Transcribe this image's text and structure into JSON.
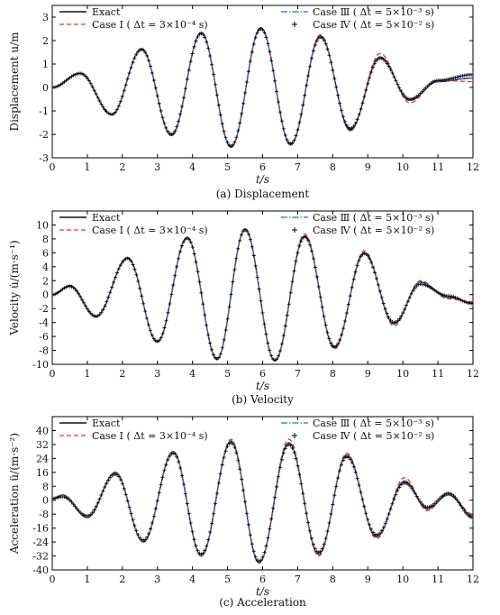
{
  "legend": {
    "exact": "Exact",
    "case1": "Case Ⅰ ( Δt = 3×10⁻⁴ s)",
    "case3": "Case Ⅲ ( Δt = 5×10⁻³ s)",
    "case4": "Case Ⅳ ( Δt = 5×10⁻² s)"
  },
  "colors": {
    "exact": "#111111",
    "case1": "#d9383a",
    "case3": "#2f6fb8",
    "case4": "#000000"
  },
  "chart_data": [
    {
      "type": "line",
      "caption": "(a) Displacement",
      "xlabel": "t/s",
      "ylabel": "Displacement u/m",
      "xlim": [
        0,
        12
      ],
      "ylim": [
        -3,
        3.5
      ],
      "xticks": [
        0,
        1,
        2,
        3,
        4,
        5,
        6,
        7,
        8,
        9,
        10,
        11,
        12
      ],
      "yticks": [
        -3,
        -2,
        -1,
        0,
        1,
        2,
        3
      ],
      "legend_position": "top",
      "x": [
        0,
        0.8,
        1.7,
        2.55,
        3.4,
        4.25,
        5.1,
        5.95,
        6.8,
        7.65,
        8.5,
        9.35,
        10.2,
        11.0,
        12.0
      ],
      "series": [
        {
          "name": "Exact",
          "values": [
            0,
            0.6,
            -1.15,
            1.65,
            -2.05,
            2.35,
            -2.55,
            2.55,
            -2.45,
            2.2,
            -1.8,
            1.3,
            -0.55,
            0.25,
            0.4
          ]
        },
        {
          "name": "Case Ⅰ",
          "values": [
            0,
            0.6,
            -1.15,
            1.65,
            -2.05,
            2.35,
            -2.55,
            2.55,
            -2.45,
            2.25,
            -1.85,
            1.45,
            -0.65,
            0.3,
            0.25
          ]
        },
        {
          "name": "Case Ⅲ",
          "values": [
            0,
            0.6,
            -1.15,
            1.65,
            -2.05,
            2.35,
            -2.55,
            2.55,
            -2.45,
            2.2,
            -1.85,
            1.3,
            -0.55,
            0.25,
            0.4
          ]
        },
        {
          "name": "Case Ⅳ",
          "values": [
            0,
            0.6,
            -1.15,
            1.62,
            -2.0,
            2.3,
            -2.5,
            2.5,
            -2.4,
            2.15,
            -1.75,
            1.25,
            -0.5,
            0.3,
            0.55
          ]
        }
      ]
    },
    {
      "type": "line",
      "caption": "(b) Velocity",
      "xlabel": "t/s",
      "ylabel": "Velocity u̇/(m·s⁻¹)",
      "xlim": [
        0,
        12
      ],
      "ylim": [
        -10,
        12
      ],
      "xticks": [
        0,
        1,
        2,
        3,
        4,
        5,
        6,
        7,
        8,
        9,
        10,
        11,
        12
      ],
      "yticks": [
        -10,
        -8,
        -6,
        -4,
        -2,
        0,
        2,
        4,
        6,
        8,
        10
      ],
      "legend_position": "top",
      "x": [
        0,
        0.5,
        1.25,
        2.15,
        3.0,
        3.85,
        4.7,
        5.5,
        6.35,
        7.2,
        8.05,
        8.9,
        9.75,
        10.5,
        11.3,
        12.0
      ],
      "series": [
        {
          "name": "Exact",
          "values": [
            0,
            1.3,
            -3.2,
            5.3,
            -6.8,
            8.2,
            -9.3,
            9.4,
            -9.5,
            8.4,
            -7.6,
            6.0,
            -4.2,
            1.8,
            -0.4,
            -1.2
          ]
        },
        {
          "name": "Case Ⅰ",
          "values": [
            0,
            1.3,
            -3.2,
            5.3,
            -6.8,
            8.2,
            -9.3,
            9.5,
            -9.5,
            8.7,
            -7.8,
            6.3,
            -4.5,
            2.0,
            -0.6,
            -1.0
          ]
        },
        {
          "name": "Case Ⅲ",
          "values": [
            0,
            1.3,
            -3.2,
            5.3,
            -6.8,
            8.2,
            -9.3,
            9.4,
            -9.5,
            8.4,
            -7.6,
            6.0,
            -4.2,
            1.8,
            -0.4,
            -1.2
          ]
        },
        {
          "name": "Case Ⅳ",
          "values": [
            0,
            1.2,
            -3.1,
            5.2,
            -6.7,
            8.1,
            -9.2,
            9.3,
            -9.4,
            8.3,
            -7.5,
            5.9,
            -4.0,
            1.5,
            -0.2,
            -1.3
          ]
        }
      ]
    },
    {
      "type": "line",
      "caption": "(c) Acceleration",
      "xlabel": "t/s",
      "ylabel": "Acceleration ü/(m·s⁻²)",
      "xlim": [
        0,
        12
      ],
      "ylim": [
        -40,
        48
      ],
      "xticks": [
        0,
        1,
        2,
        3,
        4,
        5,
        6,
        7,
        8,
        9,
        10,
        11,
        12
      ],
      "yticks": [
        -40,
        -32,
        -24,
        -16,
        -8,
        0,
        8,
        16,
        24,
        32,
        40
      ],
      "legend_position": "top",
      "x": [
        0,
        0.3,
        1.0,
        1.8,
        2.6,
        3.45,
        4.25,
        5.1,
        5.9,
        6.75,
        7.6,
        8.4,
        9.25,
        10.05,
        10.7,
        11.3,
        12.0
      ],
      "series": [
        {
          "name": "Exact",
          "values": [
            1,
            3,
            -10,
            16,
            -24,
            28,
            -32,
            34,
            -36,
            33,
            -31,
            26,
            -21,
            11,
            -5,
            3,
            -9
          ]
        },
        {
          "name": "Case Ⅰ",
          "values": [
            1,
            3,
            -10,
            16,
            -24,
            28,
            -32,
            35,
            -36,
            35,
            -32,
            27,
            -22,
            13,
            -6,
            4,
            -8
          ]
        },
        {
          "name": "Case Ⅲ",
          "values": [
            1,
            3,
            -10,
            16,
            -24,
            28,
            -32,
            34,
            -36,
            33,
            -31,
            26,
            -21,
            11,
            -5,
            3,
            -9
          ]
        },
        {
          "name": "Case Ⅳ",
          "values": [
            1,
            2,
            -9,
            15,
            -23,
            27,
            -31,
            33,
            -35,
            32,
            -30,
            25,
            -20,
            10,
            -4,
            4,
            -10
          ]
        }
      ]
    }
  ]
}
